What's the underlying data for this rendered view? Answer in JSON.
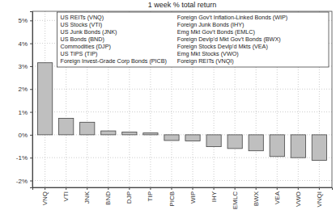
{
  "chart_data": {
    "type": "bar",
    "title": "1 week % total return",
    "categories": [
      "VNQ",
      "VTI",
      "JNK",
      "BND",
      "DJP",
      "TIP",
      "PICB",
      "WIP",
      "IHY",
      "EMLC",
      "BWX",
      "VEA",
      "VWO",
      "VNQI"
    ],
    "values": [
      3.15,
      0.72,
      0.55,
      0.17,
      0.12,
      0.08,
      -0.25,
      -0.27,
      -0.52,
      -0.6,
      -0.7,
      -0.95,
      -1.0,
      -1.12
    ],
    "color": "#bfbfbf",
    "ylim": [
      -2.3,
      5.4
    ],
    "yticks": [
      {
        "value": -2,
        "label": "-2%"
      },
      {
        "value": -1,
        "label": "-1%"
      },
      {
        "value": 0,
        "label": "0%"
      },
      {
        "value": 1,
        "label": "1%"
      },
      {
        "value": 2,
        "label": "2%"
      },
      {
        "value": 3,
        "label": "3%"
      },
      {
        "value": 4,
        "label": "4%"
      },
      {
        "value": 5,
        "label": "5%"
      }
    ],
    "grid": true,
    "annotations": [
      "US REITs (VNQ)",
      "US Stocks (VTI)",
      "US Junk Bonds (JNK)",
      "US Bonds (BND)",
      "Commodities (DJP)",
      "US TIPS (TIP)",
      "Foreign Invest-Grade Corp Bonds (PICB)",
      "Foreign Gov't Inflation-Linked Bonds (WIP)",
      "Foreign Junk Bonds (IHY)",
      "Emg Mkt Gov't Bonds (EMLC)",
      "Foreign Devlp'd Mkt Gov't Bonds (BWX)",
      "Foreign Stocks Devlp'd Mkts (VEA)",
      "Emg Mkt Stocks (VWO)",
      "Foreign REITs (VNQI)"
    ]
  }
}
